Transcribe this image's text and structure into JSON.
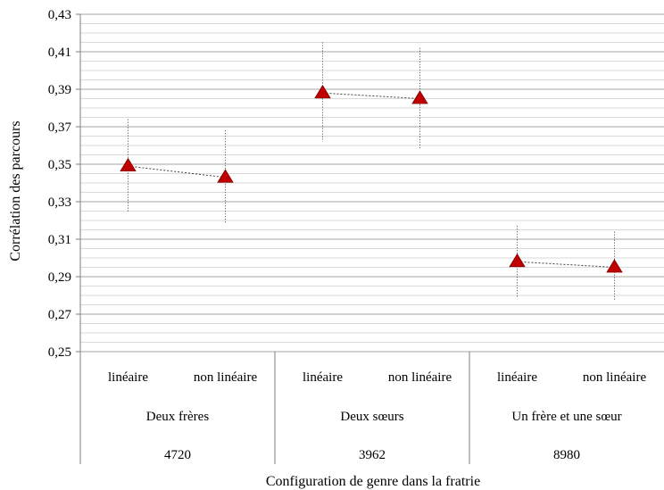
{
  "chart_data": {
    "type": "scatter",
    "ylabel": "Corrélation des parcours",
    "xlabel": "Configuration de genre dans la fratrie",
    "ylim": [
      0.25,
      0.43
    ],
    "y_ticks": [
      "0,25",
      "0,27",
      "0,29",
      "0,31",
      "0,33",
      "0,35",
      "0,37",
      "0,39",
      "0,41",
      "0,43"
    ],
    "y_tick_values": [
      0.25,
      0.27,
      0.29,
      0.31,
      0.33,
      0.35,
      0.37,
      0.39,
      0.41,
      0.43
    ],
    "grid": "horizontal major and minor",
    "marker": "triangle",
    "marker_color": "#c00000",
    "error_bar_style": "dotted",
    "connector_style": "dashed",
    "groups": [
      {
        "name": "Deux frères",
        "n": "4720",
        "points": [
          {
            "label": "linéaire",
            "value": 0.349,
            "ci_low": 0.324,
            "ci_high": 0.374
          },
          {
            "label": "non linéaire",
            "value": 0.343,
            "ci_low": 0.318,
            "ci_high": 0.368
          }
        ]
      },
      {
        "name": "Deux sœurs",
        "n": "3962",
        "points": [
          {
            "label": "linéaire",
            "value": 0.388,
            "ci_low": 0.362,
            "ci_high": 0.415
          },
          {
            "label": "non linéaire",
            "value": 0.385,
            "ci_low": 0.358,
            "ci_high": 0.412
          }
        ]
      },
      {
        "name": "Un frère et une sœur",
        "n": "8980",
        "points": [
          {
            "label": "linéaire",
            "value": 0.298,
            "ci_low": 0.279,
            "ci_high": 0.317
          },
          {
            "label": "non linéaire",
            "value": 0.295,
            "ci_low": 0.277,
            "ci_high": 0.314
          }
        ]
      }
    ]
  }
}
